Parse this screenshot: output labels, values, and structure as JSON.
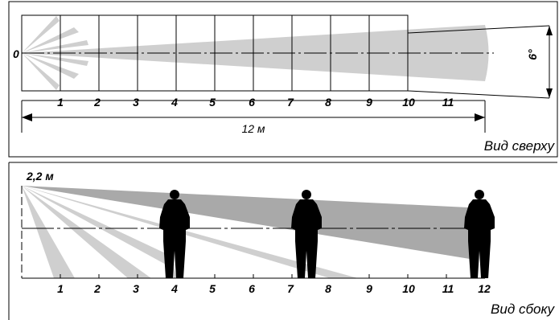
{
  "top_view": {
    "origin_label": "0",
    "tick_labels": [
      "1",
      "2",
      "3",
      "4",
      "5",
      "6",
      "7",
      "8",
      "9",
      "10",
      "11"
    ],
    "distance_label": "12 м",
    "angle_label": "6°",
    "caption": "Вид сверху"
  },
  "side_view": {
    "height_label": "2,2 м",
    "tick_labels": [
      "1",
      "2",
      "3",
      "4",
      "5",
      "6",
      "7",
      "8",
      "9",
      "10",
      "11",
      "12"
    ],
    "caption": "Вид сбоку"
  },
  "colors": {
    "light_zone": "#cfcfcf",
    "dark_zone": "#a9a9a9",
    "figure": "#000000",
    "frame": "#000000"
  }
}
